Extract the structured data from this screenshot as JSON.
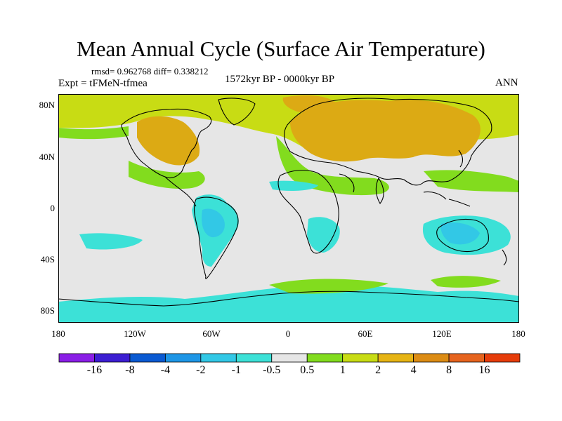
{
  "title": "Mean Annual Cycle (Surface Air Temperature)",
  "stats": "rmsd= 0.962768 diff= 0.338212",
  "experiment": "Expt = tFMeN-tfmea",
  "period": "1572kyr BP - 0000kyr BP",
  "season": "ANN",
  "lat_labels": [
    "80N",
    "40N",
    "0",
    "40S",
    "80S"
  ],
  "lon_labels": [
    "180",
    "120W",
    "60W",
    "0",
    "60E",
    "120E",
    "180"
  ],
  "colorbar": {
    "colors": [
      "#8a1ee6",
      "#3c1ed2",
      "#0a5ad2",
      "#1e96e6",
      "#32c8e6",
      "#3ce1d7",
      "#e6e6e6",
      "#82dc1e",
      "#c8dc14",
      "#e6b414",
      "#dc8c14",
      "#e6641e",
      "#e63c0a"
    ],
    "labels": [
      "-16",
      "-8",
      "-4",
      "-2",
      "-1",
      "-0.5",
      "0.5",
      "1",
      "2",
      "4",
      "8",
      "16"
    ]
  }
}
